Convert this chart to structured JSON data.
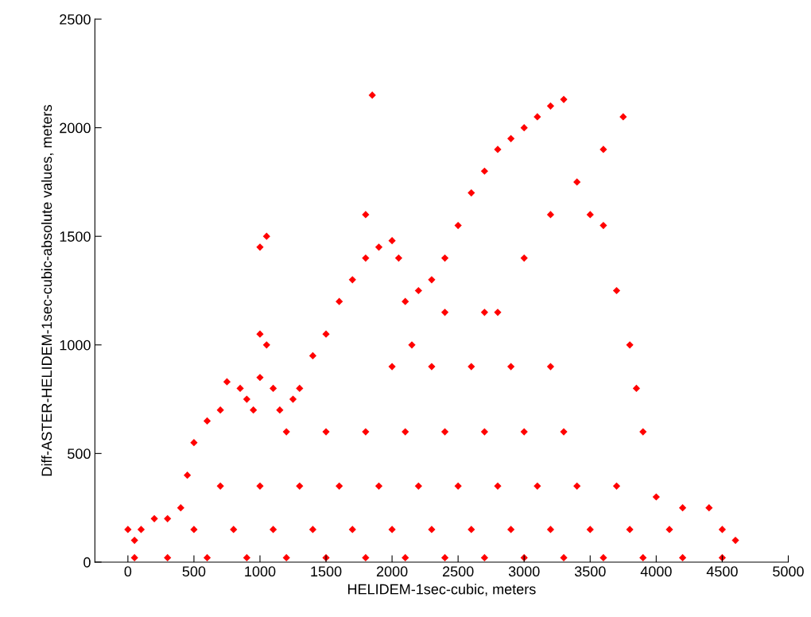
{
  "chart_data": {
    "type": "scatter",
    "xlabel": "HELIDEM-1sec-cubic, meters",
    "ylabel": "Diff-ASTER-HELIDEM-1sec-cubic-absolute values, meters",
    "xlim": [
      -250,
      5000
    ],
    "ylim": [
      0,
      2500
    ],
    "xticks": [
      0,
      500,
      1000,
      1500,
      2000,
      2500,
      3000,
      3500,
      4000,
      4500,
      5000
    ],
    "yticks": [
      0,
      500,
      1000,
      1500,
      2000,
      2500
    ],
    "grid": false,
    "legend": false,
    "marker": "diamond",
    "series": [
      {
        "color": "#ff0000",
        "x": [
          0,
          50,
          100,
          200,
          300,
          400,
          450,
          500,
          600,
          700,
          750,
          850,
          900,
          950,
          1000,
          1050,
          1100,
          1150,
          1200,
          1250,
          1300,
          1400,
          1500,
          1600,
          1700,
          1800,
          1900,
          2000,
          2050,
          2100,
          2150,
          2200,
          2300,
          2400,
          2500,
          2600,
          2700,
          2800,
          2900,
          3000,
          3100,
          3200,
          3300,
          2800,
          3000,
          3200,
          3400,
          3600,
          3750,
          1000,
          1050,
          1850,
          1800,
          1000,
          3500,
          3600,
          3700,
          3800,
          3850,
          3900,
          4000,
          4200,
          4400,
          4500,
          4600,
          50,
          300,
          600,
          900,
          1200,
          1500,
          1800,
          2100,
          2400,
          2700,
          3000,
          3300,
          3600,
          3900,
          4200,
          4500,
          500,
          800,
          1100,
          1400,
          1700,
          2000,
          2300,
          2600,
          2900,
          3200,
          3500,
          3800,
          4100,
          700,
          1000,
          1300,
          1600,
          1900,
          2200,
          2500,
          2800,
          3100,
          3400,
          3700,
          1500,
          1800,
          2100,
          2400,
          2700,
          3000,
          3300,
          2000,
          2300,
          2600,
          2900,
          3200,
          2400,
          2700
        ],
        "values": [
          150,
          100,
          150,
          200,
          200,
          250,
          400,
          550,
          650,
          700,
          830,
          800,
          750,
          700,
          850,
          1000,
          800,
          700,
          600,
          750,
          800,
          950,
          1050,
          1200,
          1300,
          1400,
          1450,
          1480,
          1400,
          1200,
          1000,
          1250,
          1300,
          1400,
          1550,
          1700,
          1800,
          1900,
          1950,
          2000,
          2050,
          2100,
          2130,
          1150,
          1400,
          1600,
          1750,
          1900,
          2050,
          1450,
          1500,
          2150,
          1600,
          1050,
          1600,
          1550,
          1250,
          1000,
          800,
          600,
          300,
          250,
          250,
          150,
          100,
          20,
          20,
          20,
          20,
          20,
          20,
          20,
          20,
          20,
          20,
          20,
          20,
          20,
          20,
          20,
          20,
          150,
          150,
          150,
          150,
          150,
          150,
          150,
          150,
          150,
          150,
          150,
          150,
          150,
          350,
          350,
          350,
          350,
          350,
          350,
          350,
          350,
          350,
          350,
          350,
          600,
          600,
          600,
          600,
          600,
          600,
          600,
          900,
          900,
          900,
          900,
          900,
          1150,
          1150
        ]
      }
    ]
  }
}
